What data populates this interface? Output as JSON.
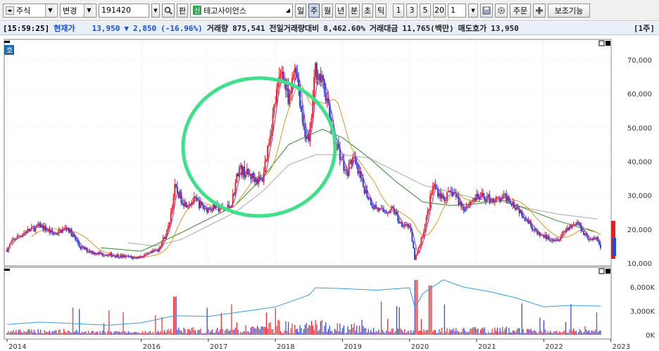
{
  "toolbar": {
    "market_type": "주식",
    "change_label": "변경",
    "code": "191420",
    "search_icon": "magnifier-icon",
    "pan_label": "판",
    "new_badge": "신",
    "stock_name": "테고사이언스",
    "periods": [
      "일",
      "주",
      "월",
      "년",
      "분",
      "초",
      "틱"
    ],
    "active_period": "주",
    "minute_options": [
      "1",
      "3",
      "5",
      "20"
    ],
    "count_value": "1",
    "order_label": "주문",
    "plus_icon": "plus-icon",
    "aux_label": "보조기능"
  },
  "status": {
    "time": "[15:59:25]",
    "current_price_label": "현재가",
    "current_price": "13,950",
    "direction": "▼",
    "change": "2,850",
    "change_pct": "(-16.96%)",
    "volume_label": "거래량",
    "volume": "875,541",
    "prev_volume_ratio_label": "전일거래량대비",
    "prev_volume_ratio": "8,462.60%",
    "amount_label": "거래대금",
    "amount": "11,765(백만)",
    "ask_label": "매도호가",
    "ask": "13,950",
    "unit": "[1주]"
  },
  "chart_data": {
    "type": "candlestick",
    "period": "weekly",
    "price_axis_ticks": [
      "70,000",
      "60,000",
      "50,000",
      "40,000",
      "30,000",
      "20,000",
      "10,000"
    ],
    "price_ylim": [
      10000,
      74000
    ],
    "volume_axis_ticks": [
      "6,000K",
      "3,000K",
      "0K"
    ],
    "x_ticks": [
      "2014",
      "2016",
      "2017",
      "2018",
      "2019",
      "2020",
      "2021",
      "2022",
      "2023"
    ],
    "price_path": [
      [
        2014.0,
        14000
      ],
      [
        2014.1,
        17000
      ],
      [
        2014.3,
        19500
      ],
      [
        2014.5,
        21000
      ],
      [
        2014.7,
        18500
      ],
      [
        2014.9,
        20500
      ],
      [
        2015.1,
        14500
      ],
      [
        2015.3,
        13000
      ],
      [
        2015.5,
        12500
      ],
      [
        2015.7,
        12000
      ],
      [
        2015.9,
        11500
      ],
      [
        2016.1,
        12500
      ],
      [
        2016.25,
        14000
      ],
      [
        2016.4,
        20000
      ],
      [
        2016.5,
        32000
      ],
      [
        2016.65,
        27500
      ],
      [
        2016.8,
        28500
      ],
      [
        2016.95,
        26000
      ],
      [
        2017.1,
        26500
      ],
      [
        2017.25,
        25500
      ],
      [
        2017.35,
        28000
      ],
      [
        2017.45,
        38000
      ],
      [
        2017.6,
        36000
      ],
      [
        2017.8,
        34000
      ],
      [
        2017.9,
        46000
      ],
      [
        2018.0,
        58000
      ],
      [
        2018.1,
        68000
      ],
      [
        2018.2,
        56000
      ],
      [
        2018.3,
        70000
      ],
      [
        2018.4,
        52000
      ],
      [
        2018.5,
        45000
      ],
      [
        2018.6,
        68000
      ],
      [
        2018.75,
        60000
      ],
      [
        2018.85,
        48000
      ],
      [
        2018.95,
        43000
      ],
      [
        2019.05,
        36000
      ],
      [
        2019.15,
        41000
      ],
      [
        2019.3,
        33000
      ],
      [
        2019.45,
        27000
      ],
      [
        2019.6,
        25000
      ],
      [
        2019.75,
        26000
      ],
      [
        2019.85,
        22000
      ],
      [
        2020.0,
        21000
      ],
      [
        2020.08,
        11000
      ],
      [
        2020.15,
        15000
      ],
      [
        2020.25,
        23000
      ],
      [
        2020.35,
        33000
      ],
      [
        2020.5,
        29000
      ],
      [
        2020.65,
        31000
      ],
      [
        2020.8,
        26000
      ],
      [
        2020.95,
        29000
      ],
      [
        2021.1,
        29500
      ],
      [
        2021.3,
        28500
      ],
      [
        2021.45,
        29500
      ],
      [
        2021.6,
        26500
      ],
      [
        2021.75,
        23000
      ],
      [
        2021.9,
        18500
      ],
      [
        2022.05,
        17500
      ],
      [
        2022.2,
        17000
      ],
      [
        2022.35,
        20500
      ],
      [
        2022.5,
        22000
      ],
      [
        2022.6,
        19000
      ],
      [
        2022.7,
        16500
      ],
      [
        2022.8,
        17500
      ],
      [
        2022.85,
        13950
      ]
    ],
    "ma_long_path": [
      [
        2015.8,
        16000
      ],
      [
        2016.2,
        15000
      ],
      [
        2016.6,
        17000
      ],
      [
        2017.0,
        21000
      ],
      [
        2017.4,
        25000
      ],
      [
        2017.8,
        31000
      ],
      [
        2018.2,
        39000
      ],
      [
        2018.6,
        42000
      ],
      [
        2019.0,
        42000
      ],
      [
        2019.4,
        41000
      ],
      [
        2019.8,
        37000
      ],
      [
        2020.2,
        33000
      ],
      [
        2020.6,
        31000
      ],
      [
        2021.0,
        29000
      ],
      [
        2021.4,
        28000
      ],
      [
        2021.8,
        26000
      ],
      [
        2022.2,
        24500
      ],
      [
        2022.8,
        23000
      ]
    ],
    "ma_mid_path": [
      [
        2015.4,
        14500
      ],
      [
        2016.0,
        13500
      ],
      [
        2016.6,
        19000
      ],
      [
        2017.0,
        23000
      ],
      [
        2017.4,
        27000
      ],
      [
        2017.8,
        35000
      ],
      [
        2018.2,
        45000
      ],
      [
        2018.7,
        49500
      ],
      [
        2019.0,
        47000
      ],
      [
        2019.4,
        41000
      ],
      [
        2019.8,
        34000
      ],
      [
        2020.2,
        28000
      ],
      [
        2020.6,
        27000
      ],
      [
        2021.0,
        27500
      ],
      [
        2021.4,
        28500
      ],
      [
        2021.8,
        25500
      ],
      [
        2022.2,
        22500
      ],
      [
        2022.8,
        19000
      ]
    ],
    "volume_line_path": [
      [
        2014.0,
        1.3
      ],
      [
        2014.5,
        1.6
      ],
      [
        2015.0,
        1.4
      ],
      [
        2015.5,
        1.2
      ],
      [
        2016.0,
        1.5
      ],
      [
        2016.5,
        2.4
      ],
      [
        2017.0,
        2.3
      ],
      [
        2017.5,
        2.9
      ],
      [
        2018.0,
        3.5
      ],
      [
        2018.5,
        5.0
      ],
      [
        2018.6,
        5.9
      ],
      [
        2019.0,
        5.8
      ],
      [
        2019.5,
        5.6
      ],
      [
        2020.0,
        5.9
      ],
      [
        2020.08,
        3.4
      ],
      [
        2020.2,
        5.2
      ],
      [
        2020.5,
        6.9
      ],
      [
        2020.8,
        6.0
      ],
      [
        2021.2,
        5.4
      ],
      [
        2021.6,
        4.6
      ],
      [
        2022.0,
        3.5
      ],
      [
        2022.4,
        3.7
      ],
      [
        2022.85,
        3.6
      ]
    ],
    "highlight": "green ellipse around 2017-2018 peak"
  }
}
